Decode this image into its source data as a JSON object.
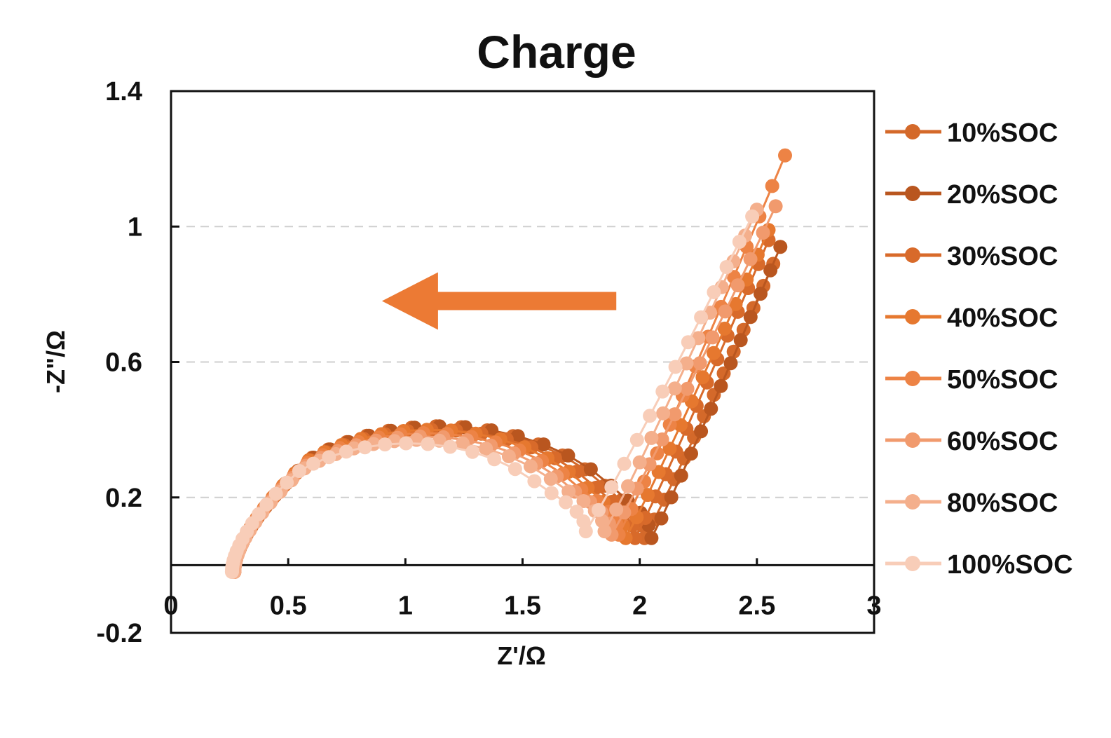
{
  "chart_data": {
    "type": "scatter",
    "title": "Charge",
    "xlabel": "Z'/Ω",
    "ylabel": "-Z\"/Ω",
    "xlim": [
      0,
      3
    ],
    "ylim": [
      -0.2,
      1.4
    ],
    "xticks": [
      0,
      0.5,
      1,
      1.5,
      2,
      2.5,
      3
    ],
    "xtick_labels": [
      "0",
      "0.5",
      "1",
      "1.5",
      "2",
      "2.5",
      "3"
    ],
    "yticks": [
      -0.2,
      0.2,
      0.6,
      1,
      1.4
    ],
    "ytick_labels": [
      "-0.2",
      "0.2",
      "0.6",
      "1",
      "1.4"
    ],
    "gridlines_y": [
      0.2,
      0.6,
      1
    ],
    "legend_position": "right",
    "annotation": {
      "type": "arrow",
      "direction": "left",
      "from": [
        1.9,
        0.78
      ],
      "to": [
        0.9,
        0.78
      ],
      "color": "#EC7A34"
    },
    "series": [
      {
        "name": "10%SOC",
        "color": "#D4692A",
        "params": {
          "start_x": 0.27,
          "start_y": -0.02,
          "xpk": 1.35,
          "pk": 0.41,
          "min_x": 2.02,
          "min_y": 0.08,
          "end_x": 2.57,
          "end_y": 0.89
        }
      },
      {
        "name": "20%SOC",
        "color": "#B9561F",
        "params": {
          "start_x": 0.27,
          "start_y": -0.02,
          "xpk": 1.34,
          "pk": 0.41,
          "min_x": 2.05,
          "min_y": 0.08,
          "end_x": 2.6,
          "end_y": 0.94
        }
      },
      {
        "name": "30%SOC",
        "color": "#D86A2A",
        "params": {
          "start_x": 0.27,
          "start_y": -0.02,
          "xpk": 1.33,
          "pk": 0.4,
          "min_x": 1.98,
          "min_y": 0.08,
          "end_x": 2.55,
          "end_y": 0.96
        }
      },
      {
        "name": "40%SOC",
        "color": "#E6782F",
        "params": {
          "start_x": 0.27,
          "start_y": -0.02,
          "xpk": 1.31,
          "pk": 0.4,
          "min_x": 1.94,
          "min_y": 0.08,
          "end_x": 2.55,
          "end_y": 0.99
        }
      },
      {
        "name": "50%SOC",
        "color": "#ED8345",
        "params": {
          "start_x": 0.27,
          "start_y": -0.02,
          "xpk": 1.29,
          "pk": 0.39,
          "min_x": 1.91,
          "min_y": 0.09,
          "end_x": 2.62,
          "end_y": 1.21
        }
      },
      {
        "name": "60%SOC",
        "color": "#F19A6D",
        "params": {
          "start_x": 0.27,
          "start_y": -0.02,
          "xpk": 1.27,
          "pk": 0.38,
          "min_x": 1.88,
          "min_y": 0.09,
          "end_x": 2.58,
          "end_y": 1.06
        }
      },
      {
        "name": "80%SOC",
        "color": "#F4AF8C",
        "params": {
          "start_x": 0.27,
          "start_y": -0.02,
          "xpk": 1.24,
          "pk": 0.37,
          "min_x": 1.85,
          "min_y": 0.1,
          "end_x": 2.5,
          "end_y": 1.05
        }
      },
      {
        "name": "100%SOC",
        "color": "#F8CDB8",
        "params": {
          "start_x": 0.26,
          "start_y": -0.02,
          "xpk": 1.21,
          "pk": 0.36,
          "min_x": 1.77,
          "min_y": 0.1,
          "end_x": 2.48,
          "end_y": 1.03
        }
      }
    ]
  }
}
